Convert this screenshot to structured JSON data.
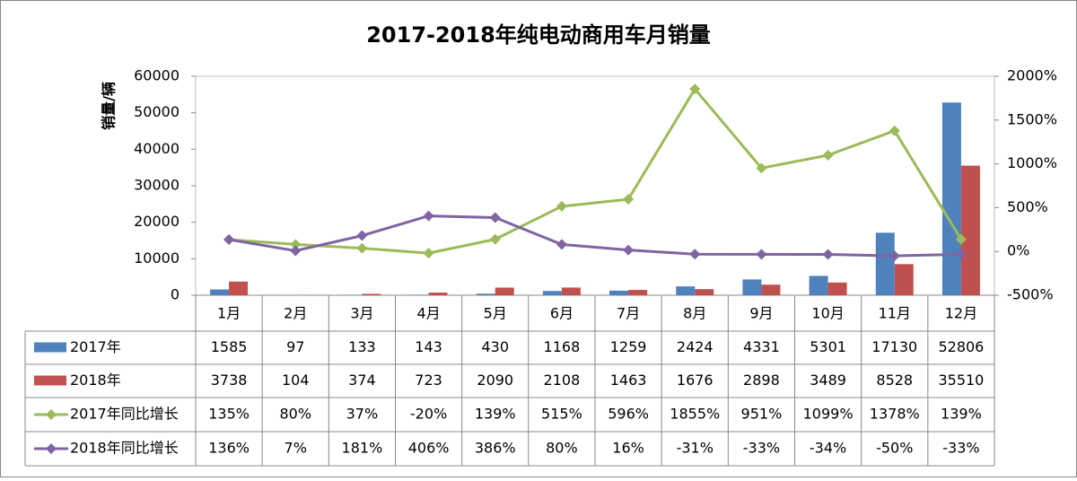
{
  "chart_data": {
    "type": "combo",
    "title": "2017-2018年纯电动商用车月销量",
    "y_label": "销量/辆",
    "categories": [
      "1月",
      "2月",
      "3月",
      "4月",
      "5月",
      "6月",
      "7月",
      "8月",
      "9月",
      "10月",
      "11月",
      "12月"
    ],
    "ylim": [
      0,
      60000
    ],
    "yticks": [
      0,
      10000,
      20000,
      30000,
      40000,
      50000,
      60000
    ],
    "y2lim": [
      -500,
      2000
    ],
    "y2ticks": [
      {
        "value": -500,
        "label": "-500%"
      },
      {
        "value": 0,
        "label": "0%"
      },
      {
        "value": 500,
        "label": "500%"
      },
      {
        "value": 1000,
        "label": "1000%"
      },
      {
        "value": 1500,
        "label": "1500%"
      },
      {
        "value": 2000,
        "label": "2000%"
      }
    ],
    "grid": false,
    "series": [
      {
        "name": "2017年",
        "type": "bar",
        "color": "#4f81bd",
        "values": [
          1585,
          97,
          133,
          143,
          430,
          1168,
          1259,
          2424,
          4331,
          5301,
          17130,
          52806
        ]
      },
      {
        "name": "2018年",
        "type": "bar",
        "color": "#c0504d",
        "values": [
          3738,
          104,
          374,
          723,
          2090,
          2108,
          1463,
          1676,
          2898,
          3489,
          8528,
          35510
        ]
      },
      {
        "name": "2017年同比增长",
        "type": "line",
        "axis": "y2",
        "color": "#9bbb59",
        "values": [
          135,
          80,
          37,
          -20,
          139,
          515,
          596,
          1855,
          951,
          1099,
          1378,
          139
        ],
        "value_labels": [
          "135%",
          "80%",
          "37%",
          "-20%",
          "139%",
          "515%",
          "596%",
          "1855%",
          "951%",
          "1099%",
          "1378%",
          "139%"
        ]
      },
      {
        "name": "2018年同比增长",
        "type": "line",
        "axis": "y2",
        "color": "#8064a2",
        "values": [
          136,
          7,
          181,
          406,
          386,
          80,
          16,
          -31,
          -33,
          -34,
          -50,
          -33
        ],
        "value_labels": [
          "136%",
          "7%",
          "181%",
          "406%",
          "386%",
          "80%",
          "16%",
          "-31%",
          "-33%",
          "-34%",
          "-50%",
          "-33%"
        ]
      }
    ]
  }
}
